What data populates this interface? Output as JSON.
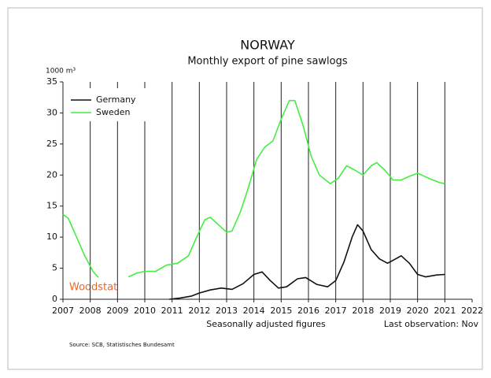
{
  "chart_data": {
    "type": "line",
    "title": "NORWAY",
    "subtitle": "Monthly export of pine sawlogs",
    "y_label": "1000 m³",
    "annotations": [
      "Seasonally adjusted figures",
      "Last observation: Nov",
      "Source: SCB, Statistisches Bundesamt",
      "Woodstat"
    ],
    "xlim": [
      2007,
      2022
    ],
    "xticks": [
      2007,
      2008,
      2009,
      2010,
      2011,
      2012,
      2013,
      2014,
      2015,
      2016,
      2017,
      2018,
      2019,
      2020,
      2021,
      2022
    ],
    "ylim": [
      0,
      35
    ],
    "yticks": [
      0,
      5,
      10,
      15,
      20,
      25,
      30,
      35
    ],
    "grid": true,
    "legend": "upper left",
    "series": [
      {
        "name": "Germany",
        "color": "#111111",
        "x": [
          2010.9,
          2011.3,
          2011.7,
          2012.0,
          2012.4,
          2012.8,
          2013.2,
          2013.6,
          2014.0,
          2014.3,
          2014.6,
          2014.9,
          2015.2,
          2015.6,
          2015.9,
          2016.3,
          2016.7,
          2017.0,
          2017.3,
          2017.6,
          2017.8,
          2018.0,
          2018.3,
          2018.6,
          2018.9,
          2019.2,
          2019.4,
          2019.7,
          2020.0,
          2020.3,
          2020.7,
          2021.0
        ],
        "values": [
          0,
          0.2,
          0.5,
          1.0,
          1.5,
          1.8,
          1.6,
          2.5,
          4.0,
          4.4,
          3.0,
          1.8,
          2.0,
          3.3,
          3.5,
          2.4,
          2.0,
          3.0,
          6.0,
          10.0,
          12.0,
          11.0,
          8.0,
          6.5,
          5.8,
          6.5,
          7.0,
          5.8,
          4.0,
          3.6,
          3.9,
          4.0
        ]
      },
      {
        "name": "Sweden",
        "color": "#44ee44",
        "x": [
          2007.0,
          2007.2,
          2007.5,
          2007.8,
          2008.1,
          2008.3,
          2008.8,
          2009.4,
          2009.7,
          2010.0,
          2010.4,
          2010.8,
          2011.2,
          2011.6,
          2011.9,
          2012.2,
          2012.4,
          2012.7,
          2013.0,
          2013.2,
          2013.5,
          2013.8,
          2014.1,
          2014.4,
          2014.7,
          2015.0,
          2015.3,
          2015.5,
          2015.8,
          2016.1,
          2016.4,
          2016.8,
          2017.1,
          2017.4,
          2017.7,
          2018.0,
          2018.3,
          2018.5,
          2018.8,
          2019.1,
          2019.4,
          2019.7,
          2020.0,
          2020.4,
          2020.8,
          2021.0
        ],
        "values": [
          13.7,
          13.0,
          10.0,
          7.0,
          4.5,
          3.5,
          null,
          3.6,
          4.2,
          4.5,
          4.5,
          5.5,
          5.8,
          7.0,
          10.0,
          12.8,
          13.2,
          12.0,
          10.8,
          11.0,
          14.0,
          18.0,
          22.5,
          24.5,
          25.5,
          29.0,
          32.0,
          32.0,
          28.0,
          23.0,
          20.0,
          18.6,
          19.5,
          21.5,
          20.8,
          20.0,
          21.5,
          22.0,
          20.8,
          19.2,
          19.2,
          19.8,
          20.3,
          19.5,
          18.8,
          18.6
        ]
      }
    ]
  }
}
